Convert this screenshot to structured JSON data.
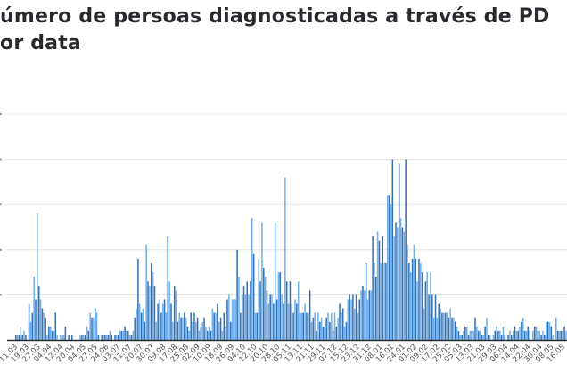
{
  "chart_data": {
    "type": "bar",
    "title_lines": [
      "úmero de persoas diagnosticadas a través de PD",
      "or data"
    ],
    "xlabel": "",
    "ylabel": "",
    "ylim": [
      0,
      5
    ],
    "grid": true,
    "legend": "none",
    "colors": {
      "dark": "#3572b8",
      "light": "#72b2ea",
      "grid": "#e3e3e3",
      "baseline": "#2b2b2b"
    },
    "x_tick_labels": [
      "11.03",
      "19.03",
      "27.03",
      "04.04",
      "12.04",
      "20.04",
      "04.05",
      "27.05",
      "24.06",
      "03.07",
      "11.07",
      "20.07",
      "30.07",
      "09.08",
      "17.08",
      "25.08",
      "02.09",
      "10.09",
      "18.09",
      "26.09",
      "04.10",
      "12.10",
      "20.10",
      "28.10",
      "05.11",
      "13.11",
      "21.11",
      "29.11",
      "07.12",
      "15.12",
      "23.12",
      "31.12",
      "08.01",
      "16.01",
      "24.01",
      "01.02",
      "09.02",
      "17.02",
      "25.02",
      "05.03",
      "13.03",
      "21.03",
      "29.03",
      "06.04",
      "14.04",
      "22.04",
      "30.04",
      "08.05",
      "16.05"
    ],
    "values": [
      0.1,
      0.1,
      0.1,
      0.3,
      0.1,
      0.2,
      0.1,
      0.0,
      0.8,
      0.4,
      0.6,
      1.4,
      0.9,
      2.8,
      1.2,
      0.9,
      0.7,
      0.6,
      0.5,
      0.1,
      0.3,
      0.3,
      0.2,
      0.2,
      0.6,
      0.1,
      0.0,
      0.1,
      0.1,
      0.1,
      0.3,
      0.0,
      0.1,
      0.0,
      0.1,
      0.0,
      0.0,
      0.0,
      0.0,
      0.1,
      0.1,
      0.1,
      0.1,
      0.3,
      0.2,
      0.6,
      0.5,
      0.5,
      0.7,
      0.6,
      0.1,
      0.0,
      0.1,
      0.1,
      0.1,
      0.1,
      0.1,
      0.2,
      0.1,
      0.0,
      0.1,
      0.1,
      0.1,
      0.2,
      0.2,
      0.2,
      0.3,
      0.2,
      0.2,
      0.1,
      0.1,
      0.2,
      0.5,
      0.7,
      1.8,
      0.8,
      0.6,
      0.7,
      0.4,
      2.1,
      1.3,
      1.2,
      1.7,
      1.5,
      1.2,
      0.4,
      0.8,
      0.9,
      0.6,
      0.8,
      0.9,
      0.6,
      2.3,
      1.3,
      0.8,
      0.4,
      1.2,
      1.1,
      0.4,
      0.6,
      0.5,
      0.5,
      0.6,
      0.5,
      0.3,
      0.2,
      0.6,
      0.4,
      0.6,
      0.4,
      0.5,
      0.2,
      0.3,
      0.4,
      0.5,
      0.3,
      0.2,
      0.3,
      0.2,
      0.7,
      0.6,
      0.6,
      0.8,
      0.4,
      0.5,
      0.2,
      0.6,
      0.3,
      0.9,
      1.0,
      0.4,
      0.9,
      0.9,
      0.9,
      2.0,
      1.4,
      0.6,
      1.0,
      1.2,
      1.0,
      1.3,
      1.0,
      1.3,
      2.7,
      1.9,
      0.6,
      0.6,
      1.8,
      1.3,
      2.6,
      1.6,
      1.4,
      1.1,
      0.8,
      1.0,
      1.0,
      0.8,
      2.6,
      0.9,
      1.5,
      1.5,
      1.0,
      0.8,
      3.6,
      1.3,
      0.8,
      1.3,
      0.8,
      0.6,
      0.9,
      0.8,
      1.3,
      0.6,
      0.6,
      0.6,
      0.8,
      0.6,
      0.6,
      1.1,
      0.4,
      0.5,
      0.6,
      0.2,
      0.6,
      0.4,
      0.5,
      0.3,
      0.3,
      0.5,
      0.6,
      0.4,
      0.6,
      0.2,
      0.6,
      0.3,
      0.5,
      0.8,
      0.6,
      0.7,
      0.3,
      0.4,
      0.9,
      1.0,
      0.9,
      1.0,
      0.7,
      1.0,
      0.6,
      0.9,
      1.1,
      1.2,
      1.1,
      1.7,
      0.9,
      1.1,
      1.1,
      2.3,
      1.7,
      1.4,
      2.4,
      2.2,
      1.7,
      2.3,
      1.7,
      1.7,
      3.2,
      3.2,
      3.0,
      4.0,
      2.3,
      2.6,
      2.5,
      3.9,
      2.7,
      2.5,
      2.4,
      4.0,
      2.1,
      1.7,
      1.5,
      1.8,
      2.1,
      1.8,
      1.3,
      1.8,
      1.7,
      1.5,
      0.7,
      1.3,
      1.5,
      1.0,
      1.5,
      1.0,
      0.5,
      1.0,
      0.5,
      0.8,
      0.7,
      0.6,
      0.6,
      0.6,
      0.6,
      0.5,
      0.7,
      0.5,
      0.5,
      0.4,
      0.3,
      0.2,
      0.1,
      0.1,
      0.2,
      0.3,
      0.3,
      0.1,
      0.2,
      0.2,
      0.2,
      0.5,
      0.3,
      0.2,
      0.2,
      0.1,
      0.1,
      0.3,
      0.5,
      0.1,
      0.1,
      0.0,
      0.1,
      0.2,
      0.3,
      0.2,
      0.2,
      0.1,
      0.3,
      0.1,
      0.0,
      0.1,
      0.2,
      0.1,
      0.2,
      0.3,
      0.2,
      0.2,
      0.3,
      0.4,
      0.5,
      0.2,
      0.2,
      0.3,
      0.2,
      0.0,
      0.2,
      0.3,
      0.3,
      0.2,
      0.2,
      0.1,
      0.2,
      0.1,
      0.4,
      0.4,
      0.4,
      0.3,
      0.1,
      0.0,
      0.5,
      0.2,
      0.2,
      0.2,
      0.2,
      0.3,
      0.2
    ]
  }
}
